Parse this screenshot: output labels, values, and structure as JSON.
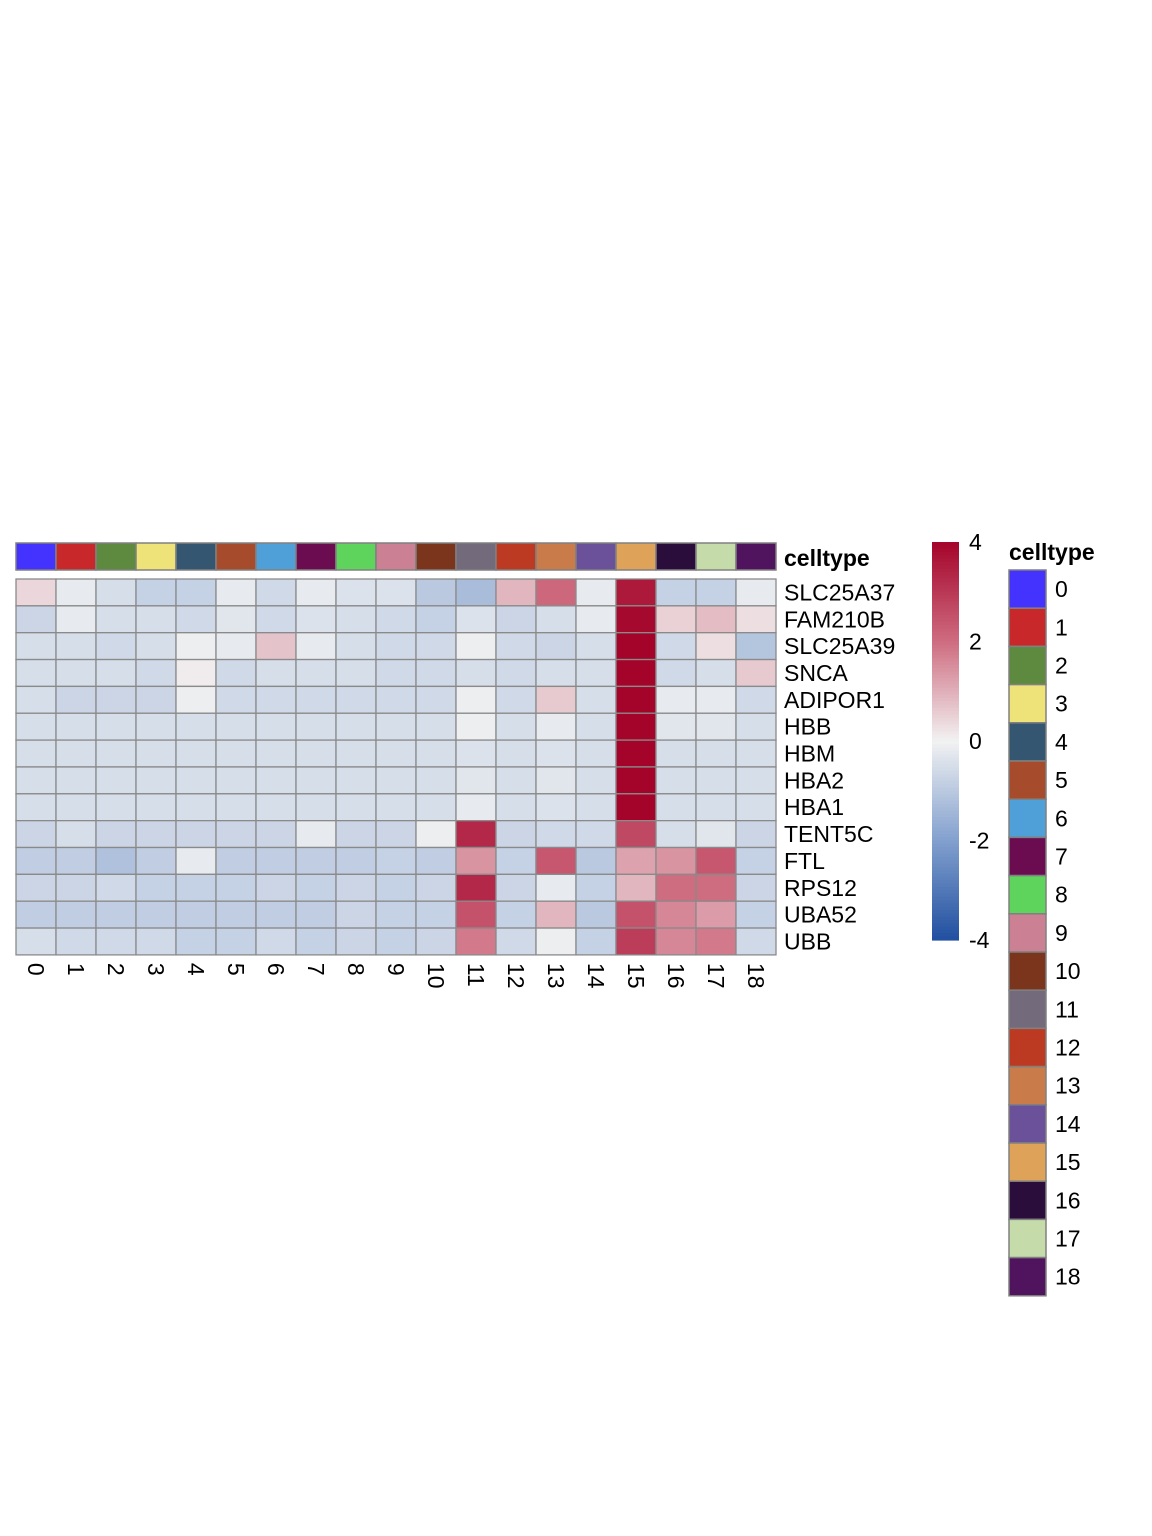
{
  "chart_data": {
    "type": "heatmap",
    "title": "",
    "xlabel": "",
    "ylabel": "",
    "annotation_title": "celltype",
    "legend_title": "celltype",
    "columns": [
      "0",
      "1",
      "2",
      "3",
      "4",
      "5",
      "6",
      "7",
      "8",
      "9",
      "10",
      "11",
      "12",
      "13",
      "14",
      "15",
      "16",
      "17",
      "18"
    ],
    "rows": [
      "SLC25A37",
      "FAM210B",
      "SLC25A39",
      "SNCA",
      "ADIPOR1",
      "HBB",
      "HBM",
      "HBA2",
      "HBA1",
      "TENT5C",
      "FTL",
      "RPS12",
      "UBA52",
      "UBB"
    ],
    "values": [
      [
        0.4,
        -0.2,
        -0.5,
        -0.8,
        -0.8,
        -0.2,
        -0.6,
        -0.2,
        -0.4,
        -0.4,
        -1.0,
        -1.3,
        0.9,
        2.1,
        -0.2,
        3.6,
        -0.8,
        -0.8,
        -0.2
      ],
      [
        -0.7,
        -0.2,
        -0.5,
        -0.5,
        -0.6,
        -0.3,
        -0.6,
        -0.4,
        -0.5,
        -0.6,
        -0.8,
        -0.4,
        -0.7,
        -0.5,
        -0.2,
        3.9,
        0.5,
        0.8,
        0.3
      ],
      [
        -0.5,
        -0.5,
        -0.6,
        -0.5,
        -0.1,
        -0.2,
        0.7,
        -0.2,
        -0.5,
        -0.6,
        -0.6,
        -0.1,
        -0.6,
        -0.7,
        -0.5,
        4.0,
        -0.6,
        0.3,
        -1.1
      ],
      [
        -0.5,
        -0.5,
        -0.5,
        -0.6,
        0.1,
        -0.6,
        -0.5,
        -0.5,
        -0.5,
        -0.6,
        -0.6,
        -0.5,
        -0.6,
        -0.5,
        -0.5,
        4.0,
        -0.6,
        -0.5,
        0.6
      ],
      [
        -0.5,
        -0.7,
        -0.7,
        -0.7,
        -0.1,
        -0.6,
        -0.6,
        -0.6,
        -0.6,
        -0.6,
        -0.6,
        -0.1,
        -0.6,
        0.6,
        -0.5,
        4.0,
        -0.2,
        -0.2,
        -0.6
      ],
      [
        -0.5,
        -0.5,
        -0.5,
        -0.5,
        -0.5,
        -0.5,
        -0.5,
        -0.5,
        -0.5,
        -0.5,
        -0.5,
        -0.1,
        -0.5,
        -0.2,
        -0.5,
        4.0,
        -0.3,
        -0.3,
        -0.5
      ],
      [
        -0.5,
        -0.5,
        -0.5,
        -0.5,
        -0.5,
        -0.5,
        -0.5,
        -0.5,
        -0.5,
        -0.5,
        -0.5,
        -0.4,
        -0.5,
        -0.4,
        -0.5,
        4.0,
        -0.5,
        -0.5,
        -0.5
      ],
      [
        -0.5,
        -0.5,
        -0.5,
        -0.5,
        -0.5,
        -0.5,
        -0.5,
        -0.5,
        -0.5,
        -0.5,
        -0.5,
        -0.3,
        -0.5,
        -0.3,
        -0.5,
        4.0,
        -0.5,
        -0.5,
        -0.5
      ],
      [
        -0.5,
        -0.5,
        -0.5,
        -0.5,
        -0.5,
        -0.5,
        -0.5,
        -0.5,
        -0.5,
        -0.5,
        -0.5,
        -0.2,
        -0.5,
        -0.4,
        -0.5,
        4.0,
        -0.5,
        -0.5,
        -0.5
      ],
      [
        -0.7,
        -0.5,
        -0.7,
        -0.7,
        -0.7,
        -0.7,
        -0.7,
        -0.2,
        -0.7,
        -0.7,
        -0.1,
        3.3,
        -0.7,
        -0.6,
        -0.6,
        2.7,
        -0.5,
        -0.3,
        -0.7
      ],
      [
        -0.9,
        -0.9,
        -1.2,
        -0.9,
        -0.2,
        -0.9,
        -0.9,
        -0.9,
        -0.9,
        -0.8,
        -0.9,
        1.4,
        -0.8,
        2.4,
        -1.0,
        1.2,
        1.4,
        2.4,
        -0.8
      ],
      [
        -0.7,
        -0.7,
        -0.6,
        -0.8,
        -0.8,
        -0.8,
        -0.7,
        -0.8,
        -0.7,
        -0.8,
        -0.7,
        3.3,
        -0.7,
        -0.2,
        -0.8,
        0.9,
        2.0,
        2.0,
        -0.7
      ],
      [
        -0.9,
        -0.9,
        -0.9,
        -0.9,
        -0.9,
        -0.9,
        -0.9,
        -0.9,
        -0.7,
        -0.8,
        -0.8,
        2.5,
        -0.8,
        0.9,
        -1.0,
        2.5,
        1.6,
        1.3,
        -0.8
      ],
      [
        -0.5,
        -0.6,
        -0.6,
        -0.6,
        -0.8,
        -0.8,
        -0.6,
        -0.8,
        -0.7,
        -0.8,
        -0.7,
        1.8,
        -0.6,
        -0.1,
        -0.8,
        2.9,
        1.6,
        1.8,
        -0.6
      ]
    ],
    "colorbar": {
      "range": [
        -4,
        4
      ],
      "ticks": [
        4,
        2,
        0,
        -2,
        -4
      ]
    },
    "celltype_colors": [
      "#4433ff",
      "#c8282a",
      "#5e8a40",
      "#eee378",
      "#355670",
      "#a64c2c",
      "#4fa0d8",
      "#6c0c50",
      "#5fd45c",
      "#cc8094",
      "#7b351c",
      "#736a7c",
      "#bd3a22",
      "#c97b49",
      "#6a519a",
      "#dea358",
      "#2a0d3a",
      "#c5dcaa",
      "#50145e"
    ]
  }
}
